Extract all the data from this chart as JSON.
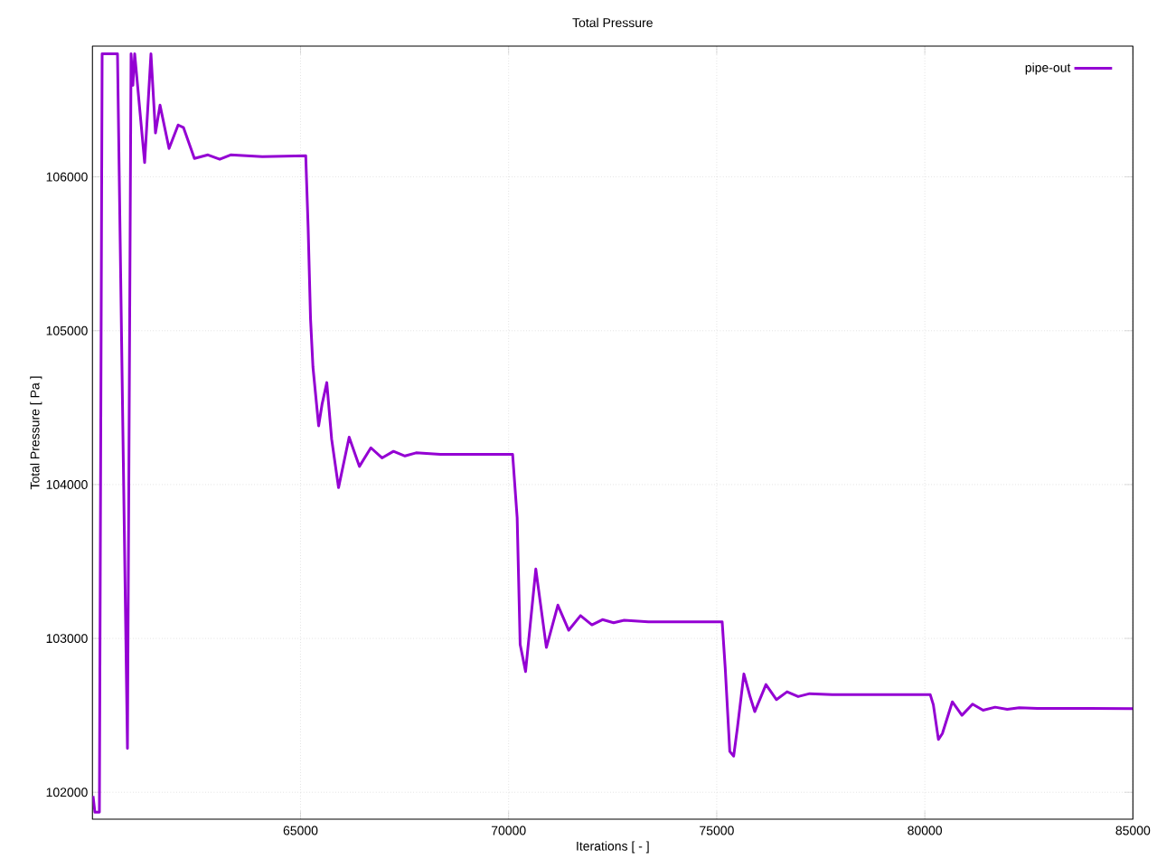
{
  "chart_data": {
    "type": "line",
    "title": "Total Pressure",
    "xlabel": "Iterations [ - ]",
    "ylabel": "Total Pressure [ Pa ]",
    "x": [
      60015,
      60059,
      60167,
      60233,
      60602,
      60841,
      60928,
      60972,
      61015,
      61254,
      61406,
      61515,
      61624,
      61841,
      62059,
      62189,
      62450,
      62776,
      63059,
      63320,
      64081,
      65125,
      65183,
      65240,
      65298,
      65435,
      65516,
      65631,
      65748,
      65913,
      66168,
      66414,
      66690,
      66957,
      67233,
      67509,
      67776,
      68357,
      70096,
      70205,
      70277,
      70407,
      70653,
      70907,
      71183,
      71444,
      71727,
      72001,
      72255,
      72522,
      72777,
      73357,
      75131,
      75205,
      75314,
      75407,
      75494,
      75653,
      75805,
      75914,
      76183,
      76436,
      76690,
      76957,
      77233,
      77777,
      78357,
      80131,
      80205,
      80327,
      80422,
      80661,
      80892,
      81147,
      81400,
      81690,
      81980,
      82270,
      82705,
      83935,
      85000
    ],
    "series": [
      {
        "name": "pipe-out",
        "color": "#9400d3",
        "values": [
          101975,
          101870,
          101870,
          106800,
          106800,
          102285,
          106800,
          106595,
          106800,
          106093,
          106800,
          106285,
          106466,
          106184,
          106337,
          106320,
          106120,
          106143,
          106114,
          106143,
          106131,
          106137,
          105667,
          105079,
          104765,
          104382,
          104520,
          104663,
          104294,
          103980,
          104308,
          104118,
          104239,
          104173,
          104216,
          104186,
          104206,
          104196,
          104196,
          103785,
          102961,
          102785,
          103451,
          102941,
          103216,
          103053,
          103148,
          103088,
          103122,
          103102,
          103118,
          103108,
          103108,
          102804,
          102265,
          102235,
          102412,
          102769,
          102618,
          102524,
          102700,
          102602,
          102653,
          102622,
          102641,
          102634,
          102634,
          102634,
          102569,
          102343,
          102382,
          102588,
          102500,
          102573,
          102533,
          102553,
          102539,
          102549,
          102545,
          102545,
          102543
        ]
      }
    ],
    "xlim": [
      60000,
      85000
    ],
    "ylim": [
      101825,
      106850
    ],
    "xticks": [
      65000,
      70000,
      75000,
      80000,
      85000
    ],
    "yticks": [
      102000,
      103000,
      104000,
      105000,
      106000
    ],
    "grid": true,
    "legend": "top right",
    "line_style": "solid",
    "marker": "none"
  }
}
